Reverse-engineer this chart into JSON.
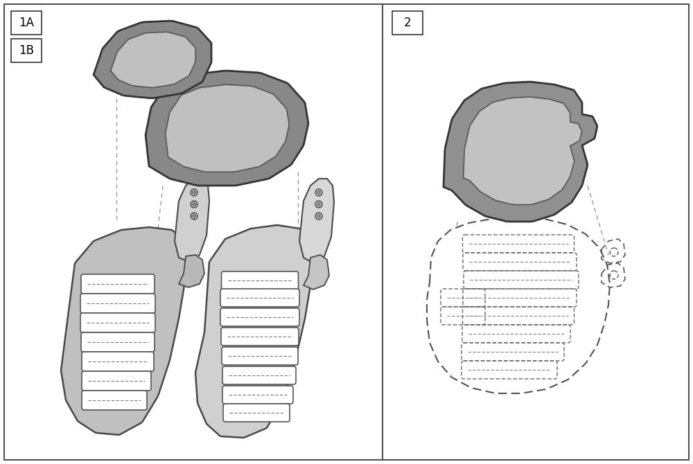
{
  "background_color": "#ffffff",
  "border_color": "#505050",
  "label_1A": "1A",
  "label_1B": "1B",
  "label_2": "2",
  "pad_dark": "#909090",
  "pad_mid": "#b0b0b0",
  "pad_light": "#d0d0d0",
  "footplate_fill": "#c8c8c8",
  "footplate_edge": "#505050",
  "dashed_color": "#808080",
  "figsize": [
    10.0,
    6.7
  ],
  "dpi": 100
}
